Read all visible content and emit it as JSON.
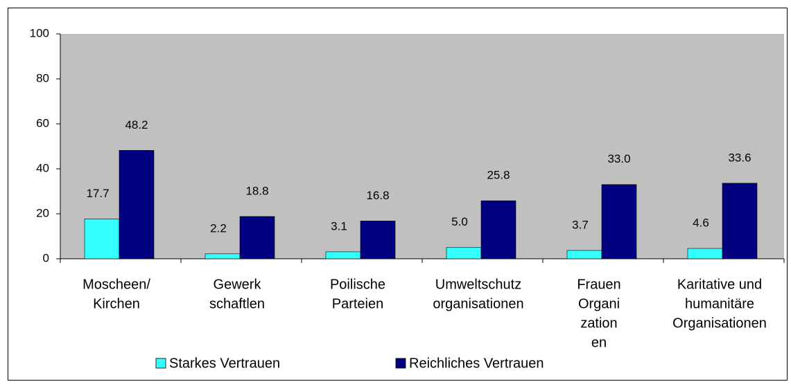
{
  "chart_data": {
    "type": "bar",
    "categories": [
      [
        "Moscheen/",
        "Kirchen"
      ],
      [
        "Gewerk",
        "schaftlen"
      ],
      [
        "Poilische",
        "Parteien"
      ],
      [
        "Umweltschutz",
        "organisationen"
      ],
      [
        "Frauen",
        "Organi",
        "zation",
        "en"
      ],
      [
        "Karitative und",
        "humanitäre",
        "Organisationen"
      ]
    ],
    "series": [
      {
        "name": "Starkes Vertrauen",
        "color": "#33ffff",
        "values": [
          17.7,
          2.2,
          3.1,
          5,
          3.7,
          4.6
        ],
        "value_labels": [
          "17.7",
          "2.2",
          "3.1",
          "5.0",
          "3.7",
          "4.6"
        ]
      },
      {
        "name": "Reichliches Vertrauen",
        "color": "#000080",
        "values": [
          48.2,
          18.8,
          16.8,
          25.8,
          33,
          33.6
        ],
        "value_labels": [
          "48.2",
          "18.8",
          "16.8",
          "25.8",
          "33.0",
          "33.6"
        ]
      }
    ],
    "ylim": [
      0,
      100
    ],
    "yticks": [
      0,
      20,
      40,
      60,
      80,
      100
    ],
    "grid": false,
    "legend": "bottom"
  }
}
